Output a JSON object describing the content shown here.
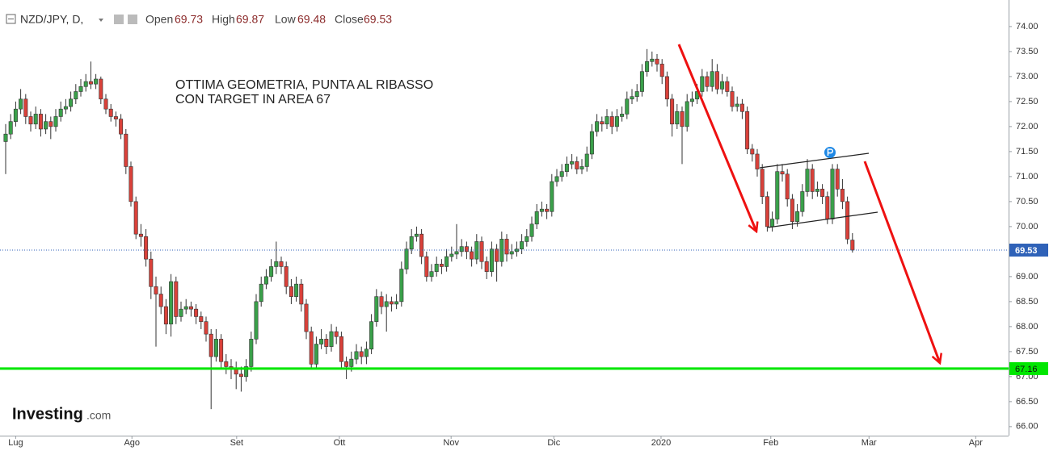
{
  "chart_data": {
    "type": "candlestick",
    "symbol": "NZD/JPY, D,",
    "ohlc_labels": [
      "Open",
      "High",
      "Low",
      "Close"
    ],
    "annotation": [
      "OTTIMA GEOMETRIA, PUNTA AL RIBASSO",
      "CON TARGET IN AREA 67"
    ],
    "logo": {
      "brand": "Investing",
      "suffix": ".com"
    },
    "up_color": "#3aa04a",
    "down_color": "#d9413a",
    "price_line_color": "#2f62b8",
    "grid": false,
    "levels": [
      {
        "value": 67.16,
        "color": "#00e600"
      }
    ],
    "xlim": [
      -1.13,
      200.16
    ],
    "xticks": [
      {
        "value": 2,
        "label": "Lug"
      },
      {
        "value": 25.2,
        "label": "Ago"
      },
      {
        "value": 46.1,
        "label": "Set"
      },
      {
        "value": 66.6,
        "label": "Ott"
      },
      {
        "value": 88.9,
        "label": "Nov"
      },
      {
        "value": 109.4,
        "label": "Dic"
      },
      {
        "value": 130.8,
        "label": "2020"
      },
      {
        "value": 152.7,
        "label": "Feb"
      },
      {
        "value": 172.3,
        "label": "Mar"
      },
      {
        "value": 193.6,
        "label": "Apr"
      }
    ],
    "ylim": [
      65.82,
      74.45
    ],
    "yticks": [
      {
        "value": 66,
        "label": "66.00"
      },
      {
        "value": 66.5,
        "label": "66.50"
      },
      {
        "value": 67,
        "label": "67.00"
      },
      {
        "value": 67.5,
        "label": "67.50"
      },
      {
        "value": 68,
        "label": "68.00"
      },
      {
        "value": 68.5,
        "label": "68.50"
      },
      {
        "value": 69,
        "label": "69.00"
      },
      {
        "value": 69.5,
        "label": "69.50"
      },
      {
        "value": 70,
        "label": "70.00"
      },
      {
        "value": 70.5,
        "label": "70.50"
      },
      {
        "value": 71,
        "label": "71.00"
      },
      {
        "value": 71.5,
        "label": "71.50"
      },
      {
        "value": 72,
        "label": "72.00"
      },
      {
        "value": 72.5,
        "label": "72.50"
      },
      {
        "value": 73,
        "label": "73.00"
      },
      {
        "value": 73.5,
        "label": "73.50"
      },
      {
        "value": 74,
        "label": "74.00"
      }
    ],
    "candles": [
      [
        71.7,
        72.05,
        71.05,
        71.85
      ],
      [
        71.85,
        72.25,
        71.75,
        72.1
      ],
      [
        72.1,
        72.5,
        72.0,
        72.35
      ],
      [
        72.35,
        72.75,
        72.25,
        72.55
      ],
      [
        72.55,
        72.65,
        72.05,
        72.2
      ],
      [
        72.2,
        72.3,
        71.9,
        72.05
      ],
      [
        72.05,
        72.4,
        71.95,
        72.25
      ],
      [
        72.25,
        72.35,
        71.8,
        71.95
      ],
      [
        71.95,
        72.25,
        71.85,
        72.1
      ],
      [
        72.1,
        72.2,
        71.75,
        72.0
      ],
      [
        72.0,
        72.35,
        71.9,
        72.2
      ],
      [
        72.2,
        72.5,
        72.1,
        72.35
      ],
      [
        72.35,
        72.55,
        72.25,
        72.4
      ],
      [
        72.4,
        72.7,
        72.3,
        72.55
      ],
      [
        72.55,
        72.85,
        72.45,
        72.7
      ],
      [
        72.7,
        72.95,
        72.6,
        72.8
      ],
      [
        72.8,
        73.05,
        72.7,
        72.9
      ],
      [
        72.9,
        73.3,
        72.75,
        72.85
      ],
      [
        72.85,
        73.05,
        72.75,
        72.95
      ],
      [
        72.95,
        73.0,
        72.45,
        72.55
      ],
      [
        72.55,
        72.65,
        72.25,
        72.35
      ],
      [
        72.35,
        72.45,
        72.1,
        72.2
      ],
      [
        72.2,
        72.3,
        72.0,
        72.15
      ],
      [
        72.15,
        72.25,
        71.75,
        71.85
      ],
      [
        71.85,
        71.95,
        71.05,
        71.2
      ],
      [
        71.2,
        71.3,
        70.4,
        70.5
      ],
      [
        70.5,
        70.6,
        69.75,
        69.85
      ],
      [
        69.85,
        70.05,
        69.6,
        69.8
      ],
      [
        69.8,
        69.95,
        69.2,
        69.35
      ],
      [
        69.35,
        69.5,
        68.55,
        68.8
      ],
      [
        68.8,
        69.0,
        67.6,
        68.65
      ],
      [
        68.65,
        68.8,
        68.25,
        68.4
      ],
      [
        68.4,
        68.55,
        67.85,
        68.05
      ],
      [
        68.05,
        69.05,
        67.8,
        68.9
      ],
      [
        68.9,
        69.0,
        68.05,
        68.2
      ],
      [
        68.2,
        68.5,
        68.1,
        68.35
      ],
      [
        68.35,
        68.55,
        68.25,
        68.4
      ],
      [
        68.4,
        68.5,
        68.2,
        68.35
      ],
      [
        68.35,
        68.45,
        68.05,
        68.2
      ],
      [
        68.2,
        68.3,
        67.95,
        68.1
      ],
      [
        68.1,
        68.2,
        67.7,
        67.85
      ],
      [
        67.85,
        67.95,
        66.35,
        67.4
      ],
      [
        67.4,
        67.95,
        67.3,
        67.75
      ],
      [
        67.75,
        67.85,
        67.15,
        67.3
      ],
      [
        67.3,
        67.45,
        67.05,
        67.2
      ],
      [
        67.2,
        67.35,
        66.95,
        67.15
      ],
      [
        67.15,
        67.3,
        66.75,
        67.05
      ],
      [
        67.05,
        67.2,
        66.7,
        67.0
      ],
      [
        67.0,
        67.35,
        66.9,
        67.2
      ],
      [
        67.2,
        67.9,
        67.1,
        67.75
      ],
      [
        67.75,
        68.65,
        67.65,
        68.5
      ],
      [
        68.5,
        69.0,
        68.4,
        68.85
      ],
      [
        68.85,
        69.15,
        68.75,
        69.0
      ],
      [
        69.0,
        69.35,
        68.9,
        69.2
      ],
      [
        69.2,
        69.7,
        69.05,
        69.3
      ],
      [
        69.3,
        69.4,
        69.05,
        69.2
      ],
      [
        69.2,
        69.3,
        68.65,
        68.8
      ],
      [
        68.8,
        68.95,
        68.45,
        68.6
      ],
      [
        68.6,
        69.0,
        68.5,
        68.85
      ],
      [
        68.85,
        68.95,
        68.3,
        68.45
      ],
      [
        68.45,
        68.55,
        67.75,
        67.9
      ],
      [
        67.9,
        68.0,
        67.15,
        67.25
      ],
      [
        67.25,
        67.8,
        67.15,
        67.65
      ],
      [
        67.65,
        67.95,
        67.55,
        67.75
      ],
      [
        67.75,
        67.85,
        67.45,
        67.6
      ],
      [
        67.6,
        68.05,
        67.5,
        67.9
      ],
      [
        67.9,
        68.0,
        67.65,
        67.8
      ],
      [
        67.8,
        67.9,
        67.15,
        67.3
      ],
      [
        67.3,
        67.4,
        66.95,
        67.2
      ],
      [
        67.2,
        67.5,
        67.1,
        67.35
      ],
      [
        67.35,
        67.65,
        67.25,
        67.5
      ],
      [
        67.5,
        67.6,
        67.25,
        67.4
      ],
      [
        67.4,
        67.7,
        67.25,
        67.55
      ],
      [
        67.55,
        68.25,
        67.45,
        68.1
      ],
      [
        68.1,
        68.75,
        68.0,
        68.6
      ],
      [
        68.6,
        68.7,
        68.25,
        68.4
      ],
      [
        68.4,
        68.65,
        67.9,
        68.5
      ],
      [
        68.5,
        68.6,
        68.3,
        68.45
      ],
      [
        68.45,
        68.65,
        68.35,
        68.5
      ],
      [
        68.5,
        69.3,
        68.4,
        69.15
      ],
      [
        69.15,
        69.7,
        69.05,
        69.55
      ],
      [
        69.55,
        69.95,
        69.45,
        69.8
      ],
      [
        69.8,
        70.0,
        69.7,
        69.85
      ],
      [
        69.85,
        69.95,
        69.25,
        69.4
      ],
      [
        69.4,
        69.5,
        68.9,
        69.0
      ],
      [
        69.0,
        69.25,
        68.9,
        69.1
      ],
      [
        69.1,
        69.4,
        69.0,
        69.25
      ],
      [
        69.25,
        69.35,
        69.05,
        69.2
      ],
      [
        69.2,
        69.55,
        69.1,
        69.4
      ],
      [
        69.4,
        69.6,
        69.3,
        69.45
      ],
      [
        69.45,
        70.05,
        69.35,
        69.5
      ],
      [
        69.5,
        69.75,
        69.4,
        69.6
      ],
      [
        69.6,
        69.7,
        69.35,
        69.5
      ],
      [
        69.5,
        69.6,
        69.2,
        69.35
      ],
      [
        69.35,
        69.85,
        69.25,
        69.7
      ],
      [
        69.7,
        69.8,
        69.15,
        69.3
      ],
      [
        69.3,
        69.4,
        68.95,
        69.1
      ],
      [
        69.1,
        69.7,
        69.0,
        69.55
      ],
      [
        69.55,
        69.65,
        68.9,
        69.3
      ],
      [
        69.3,
        69.9,
        69.2,
        69.75
      ],
      [
        69.75,
        69.85,
        69.3,
        69.45
      ],
      [
        69.45,
        69.65,
        69.35,
        69.5
      ],
      [
        69.5,
        69.7,
        69.4,
        69.55
      ],
      [
        69.55,
        69.85,
        69.45,
        69.7
      ],
      [
        69.7,
        69.95,
        69.6,
        69.8
      ],
      [
        69.8,
        70.2,
        69.7,
        70.05
      ],
      [
        70.05,
        70.45,
        69.95,
        70.3
      ],
      [
        70.3,
        70.5,
        70.2,
        70.35
      ],
      [
        70.35,
        70.45,
        70.15,
        70.3
      ],
      [
        70.3,
        71.05,
        70.2,
        70.9
      ],
      [
        70.9,
        71.15,
        70.8,
        71.0
      ],
      [
        71.0,
        71.25,
        70.9,
        71.1
      ],
      [
        71.1,
        71.4,
        71.0,
        71.25
      ],
      [
        71.25,
        71.45,
        71.15,
        71.3
      ],
      [
        71.3,
        71.4,
        71.05,
        71.15
      ],
      [
        71.15,
        71.35,
        71.05,
        71.2
      ],
      [
        71.2,
        71.6,
        71.1,
        71.45
      ],
      [
        71.45,
        72.05,
        71.35,
        71.9
      ],
      [
        71.9,
        72.25,
        71.8,
        72.1
      ],
      [
        72.1,
        72.2,
        71.9,
        72.05
      ],
      [
        72.05,
        72.35,
        71.95,
        72.2
      ],
      [
        72.2,
        72.3,
        71.85,
        72.0
      ],
      [
        72.0,
        72.35,
        71.9,
        72.2
      ],
      [
        72.2,
        72.4,
        72.1,
        72.25
      ],
      [
        72.25,
        72.7,
        72.15,
        72.55
      ],
      [
        72.55,
        72.75,
        72.45,
        72.6
      ],
      [
        72.6,
        72.85,
        72.5,
        72.7
      ],
      [
        72.7,
        73.25,
        72.6,
        73.1
      ],
      [
        73.1,
        73.55,
        73.0,
        73.3
      ],
      [
        73.3,
        73.5,
        73.2,
        73.35
      ],
      [
        73.35,
        73.45,
        73.1,
        73.25
      ],
      [
        73.25,
        73.35,
        72.85,
        73.0
      ],
      [
        73.0,
        73.1,
        72.4,
        72.55
      ],
      [
        72.55,
        72.65,
        71.8,
        72.05
      ],
      [
        72.05,
        72.45,
        71.95,
        72.3
      ],
      [
        72.3,
        72.4,
        71.25,
        72.0
      ],
      [
        72.0,
        72.65,
        71.9,
        72.5
      ],
      [
        72.5,
        72.7,
        72.4,
        72.55
      ],
      [
        72.55,
        72.85,
        72.45,
        72.7
      ],
      [
        72.7,
        73.15,
        72.6,
        73.0
      ],
      [
        73.0,
        73.1,
        72.7,
        72.8
      ],
      [
        72.8,
        73.35,
        72.7,
        73.1
      ],
      [
        73.1,
        73.25,
        72.65,
        72.75
      ],
      [
        72.75,
        73.05,
        72.65,
        72.9
      ],
      [
        72.9,
        73.0,
        72.6,
        72.7
      ],
      [
        72.7,
        72.8,
        72.3,
        72.4
      ],
      [
        72.4,
        72.6,
        72.3,
        72.45
      ],
      [
        72.45,
        72.55,
        72.15,
        72.3
      ],
      [
        72.3,
        72.4,
        71.45,
        71.55
      ],
      [
        71.55,
        71.65,
        71.3,
        71.45
      ],
      [
        71.45,
        71.55,
        71.0,
        71.15
      ],
      [
        71.15,
        71.25,
        70.45,
        70.6
      ],
      [
        70.6,
        70.7,
        69.9,
        70.0
      ],
      [
        70.0,
        70.3,
        69.9,
        70.15
      ],
      [
        70.15,
        71.25,
        70.05,
        71.1
      ],
      [
        71.1,
        71.25,
        70.9,
        71.05
      ],
      [
        71.05,
        71.15,
        70.4,
        70.55
      ],
      [
        70.55,
        70.65,
        69.95,
        70.1
      ],
      [
        70.1,
        70.45,
        70.0,
        70.3
      ],
      [
        70.3,
        70.85,
        70.2,
        70.7
      ],
      [
        70.7,
        71.35,
        70.6,
        71.15
      ],
      [
        71.15,
        71.25,
        70.55,
        70.7
      ],
      [
        70.7,
        70.9,
        70.6,
        70.75
      ],
      [
        70.75,
        70.85,
        70.45,
        70.6
      ],
      [
        70.6,
        70.7,
        70.05,
        70.15
      ],
      [
        70.15,
        71.25,
        70.05,
        71.15
      ],
      [
        71.15,
        71.25,
        70.6,
        70.75
      ],
      [
        70.75,
        70.95,
        70.35,
        70.5
      ],
      [
        70.5,
        70.6,
        69.65,
        69.75
      ],
      [
        69.73,
        69.87,
        69.48,
        69.53
      ]
    ]
  }
}
